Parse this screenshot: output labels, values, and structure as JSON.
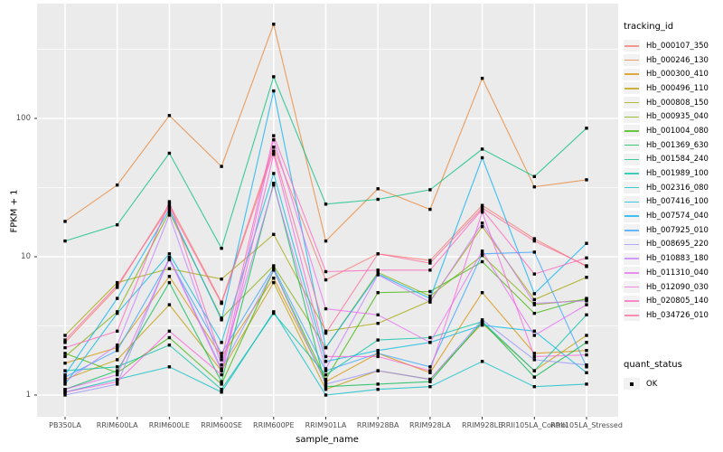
{
  "chart_data": {
    "type": "line",
    "title": "",
    "xlabel": "sample_name",
    "ylabel": "FPKM + 1",
    "y_scale": "log10",
    "ylim": [
      0.7,
      680
    ],
    "grid": true,
    "legend_position": "right",
    "x_categories": [
      "PB350LA",
      "RRIM600LA",
      "RRIM600LE",
      "RRIM600SE",
      "RRIM600PE",
      "RRIM901LA",
      "RRIM928BA",
      "RRIM928LA",
      "RRIM928LE",
      "RRII105LA_Control",
      "RRII105LA_Stressed"
    ],
    "y_ticks": [
      {
        "label": "1",
        "value": 1
      },
      {
        "label": "10",
        "value": 10
      },
      {
        "label": "100",
        "value": 100
      }
    ],
    "y_minor_tick_values": [
      3.162,
      31.623,
      316.228
    ],
    "series": [
      {
        "name": "Hb_000107_350",
        "color": "#F8766D",
        "values": [
          2.4,
          6.0,
          24,
          4.7,
          62,
          6.8,
          10.5,
          9.4,
          23.5,
          13.5,
          8.5
        ]
      },
      {
        "name": "Hb_000246_130",
        "color": "#EA8331",
        "values": [
          18,
          33,
          105,
          45,
          480,
          13,
          31,
          22,
          195,
          32,
          36
        ]
      },
      {
        "name": "Hb_000300_410",
        "color": "#D89000",
        "values": [
          1.7,
          2.2,
          7.2,
          1.9,
          7.0,
          1.25,
          2.0,
          1.45,
          5.5,
          2.0,
          2.1
        ]
      },
      {
        "name": "Hb_000496_110",
        "color": "#C09B00",
        "values": [
          1.3,
          1.8,
          4.5,
          1.5,
          6.5,
          1.1,
          1.5,
          1.3,
          3.3,
          1.5,
          2.7
        ]
      },
      {
        "name": "Hb_000808_150",
        "color": "#A3A500",
        "values": [
          2.7,
          6.5,
          8.2,
          6.9,
          14.5,
          2.9,
          3.3,
          4.8,
          16.5,
          4.9,
          7.1
        ]
      },
      {
        "name": "Hb_000935_040",
        "color": "#7CAE00",
        "values": [
          1.9,
          4.0,
          21,
          3.6,
          8.6,
          2.2,
          7.7,
          5.2,
          10.2,
          4.5,
          4.9
        ]
      },
      {
        "name": "Hb_001004_080",
        "color": "#39B600",
        "values": [
          2.0,
          1.45,
          2.6,
          1.2,
          8.0,
          1.3,
          5.5,
          5.6,
          9.2,
          3.9,
          5.0
        ]
      },
      {
        "name": "Hb_001369_630",
        "color": "#00BB4E",
        "values": [
          1.1,
          1.5,
          6.5,
          1.25,
          34,
          1.15,
          1.2,
          1.25,
          3.4,
          1.35,
          2.4
        ]
      },
      {
        "name": "Hb_001584_240",
        "color": "#00BF7D",
        "values": [
          13,
          17,
          56,
          11.5,
          200,
          24,
          26,
          30.5,
          60,
          38,
          85
        ]
      },
      {
        "name": "Hb_001989_100",
        "color": "#00C1A3",
        "values": [
          1.5,
          1.6,
          2.3,
          1.1,
          3.9,
          1.4,
          2.5,
          2.6,
          3.4,
          1.5,
          3.8
        ]
      },
      {
        "name": "Hb_002316_080",
        "color": "#00BFC4",
        "values": [
          1.05,
          1.3,
          1.6,
          1.05,
          4.0,
          1.0,
          1.1,
          1.15,
          1.75,
          1.15,
          1.2
        ]
      },
      {
        "name": "Hb_007416_100",
        "color": "#00BAE0",
        "values": [
          1.2,
          3.9,
          10.5,
          2.4,
          40,
          1.75,
          2.1,
          2.4,
          3.2,
          2.9,
          1.45
        ]
      },
      {
        "name": "Hb_007574_040",
        "color": "#00B0F6",
        "values": [
          1.4,
          5.0,
          22,
          3.5,
          158,
          2.2,
          7.5,
          5.0,
          52,
          5.4,
          12.5
        ]
      },
      {
        "name": "Hb_007925_010",
        "color": "#35A2FF",
        "values": [
          1.35,
          2.1,
          9.5,
          2.0,
          8.3,
          1.5,
          2.0,
          1.6,
          10.5,
          10.8,
          1.6
        ]
      },
      {
        "name": "Hb_008695_220",
        "color": "#9590FF",
        "values": [
          1.0,
          1.2,
          9.9,
          1.55,
          8.0,
          1.2,
          1.5,
          1.3,
          3.5,
          1.8,
          1.65
        ]
      },
      {
        "name": "Hb_010883_180",
        "color": "#C77CFF",
        "values": [
          1.25,
          2.3,
          20,
          1.65,
          33,
          1.55,
          7.4,
          4.7,
          17.5,
          4.6,
          4.8
        ]
      },
      {
        "name": "Hb_011310_040",
        "color": "#E76BF3",
        "values": [
          1.1,
          1.4,
          9.7,
          1.5,
          70,
          4.2,
          3.8,
          2.4,
          11,
          2.7,
          4.5
        ]
      },
      {
        "name": "Hb_012090_030",
        "color": "#FA62DB",
        "values": [
          1.05,
          1.25,
          2.9,
          1.4,
          55,
          1.9,
          1.9,
          1.5,
          21,
          1.9,
          1.95
        ]
      },
      {
        "name": "Hb_020805_140",
        "color": "#FF62BC",
        "values": [
          2.2,
          2.9,
          25,
          1.8,
          75,
          7.8,
          8.0,
          8.0,
          22,
          7.5,
          9.8
        ]
      },
      {
        "name": "Hb_034726_010",
        "color": "#FF6A98",
        "values": [
          2.5,
          6.2,
          23,
          4.6,
          58,
          2.8,
          10.5,
          9.0,
          22.5,
          13.0,
          8.6
        ]
      }
    ],
    "legend": {
      "color_legend_title": "tracking_id",
      "shape_legend_title": "quant_status",
      "shape_items": [
        {
          "label": "OK",
          "marker": "black-square"
        }
      ]
    },
    "style": {
      "panel_bg": "#EBEBEB",
      "grid_color": "#FFFFFF",
      "tick_label_color": "#4D4D4D",
      "axis_title_color": "#000000",
      "point_color": "#000000",
      "line_opacity": 0.75,
      "legend_key_bg": "#F2F2F2"
    }
  }
}
